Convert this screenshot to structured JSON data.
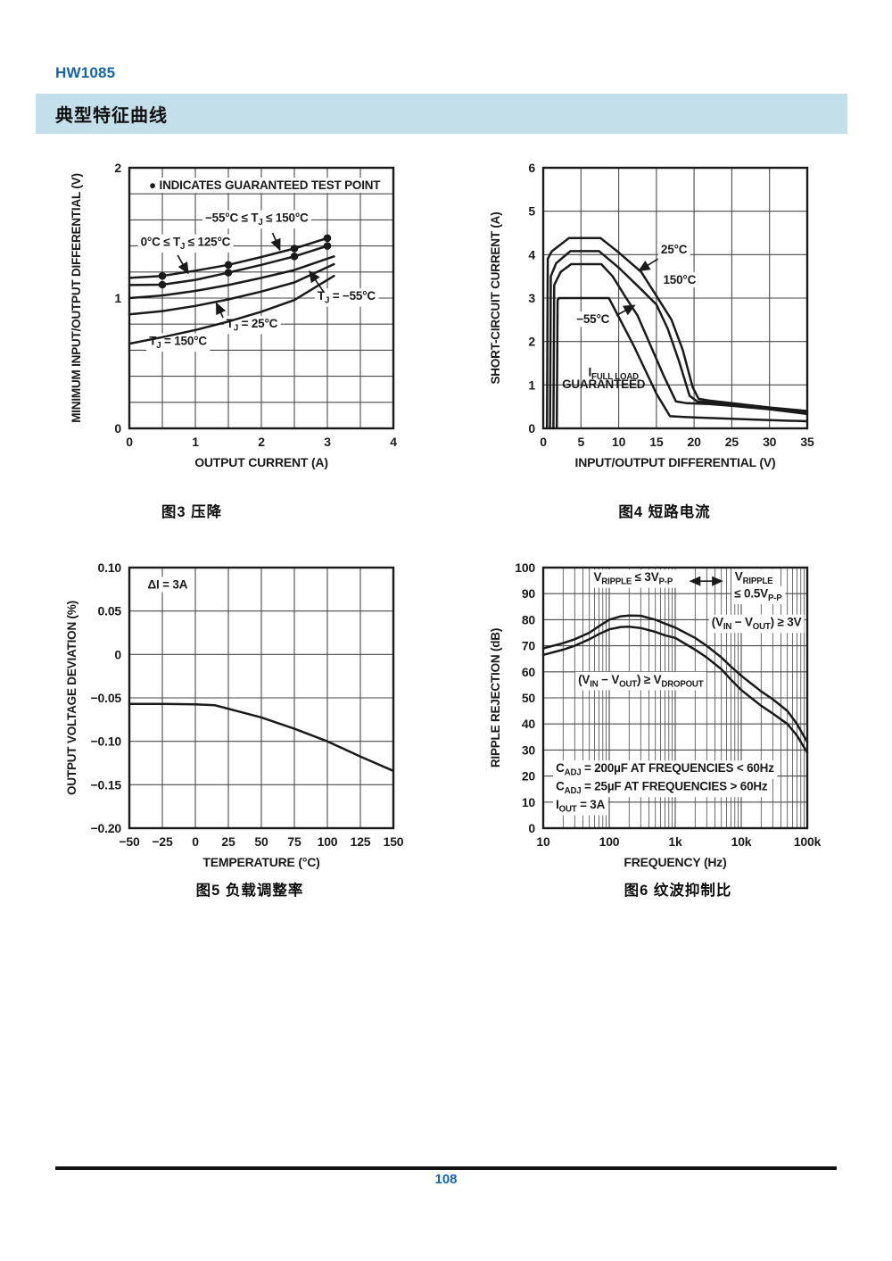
{
  "page": {
    "brand": "HW1085",
    "section_title": "典型特征曲线",
    "page_number": "108"
  },
  "colors": {
    "accent_blue": "#1565a8",
    "banner_bg": "#c3dfe9",
    "ink": "#1a1a1a",
    "grid": "#4a4a4a"
  },
  "chart_data": [
    {
      "id": "figure3",
      "type": "line",
      "caption": "图3 压降",
      "xlabel": "OUTPUT CURRENT (A)",
      "ylabel": "MINIMUM INPUT/OUTPUT DIFFERENTIAL (V)",
      "xlim": [
        0,
        4
      ],
      "ylim": [
        0,
        2
      ],
      "xgrid_step": 0.5,
      "ygrid_step": 0.2,
      "xticks": [
        0,
        1,
        2,
        3,
        4
      ],
      "xtick_labels": [
        "0",
        "1",
        "2",
        "3",
        "4"
      ],
      "yticks": [
        0,
        1,
        2
      ],
      "ytick_labels": [
        "0",
        "1",
        "2"
      ],
      "series": [
        {
          "name": "−55°C ≤ TJ ≤ 150°C",
          "points": [
            [
              0,
              1.155
            ],
            [
              0.5,
              1.17
            ],
            [
              1,
              1.21
            ],
            [
              1.5,
              1.255
            ],
            [
              2,
              1.315
            ],
            [
              2.5,
              1.38
            ],
            [
              3,
              1.46
            ]
          ],
          "test_points": [
            [
              0.5,
              1.17
            ],
            [
              1.5,
              1.255
            ],
            [
              2.5,
              1.38
            ],
            [
              3,
              1.46
            ]
          ]
        },
        {
          "name": "0°C ≤ TJ ≤ 125°C",
          "points": [
            [
              0,
              1.1
            ],
            [
              0.5,
              1.103
            ],
            [
              1,
              1.14
            ],
            [
              1.5,
              1.195
            ],
            [
              2,
              1.255
            ],
            [
              2.5,
              1.32
            ],
            [
              3,
              1.4
            ]
          ],
          "test_points": [
            [
              0.5,
              1.103
            ],
            [
              1.5,
              1.195
            ],
            [
              2.5,
              1.32
            ],
            [
              3,
              1.4
            ]
          ]
        },
        {
          "name": "TJ = −55°C",
          "points": [
            [
              0,
              1.0
            ],
            [
              0.5,
              1.02
            ],
            [
              1,
              1.055
            ],
            [
              1.5,
              1.1
            ],
            [
              2,
              1.155
            ],
            [
              2.5,
              1.215
            ],
            [
              3.1,
              1.32
            ]
          ]
        },
        {
          "name": "TJ = 25°C",
          "points": [
            [
              0,
              0.875
            ],
            [
              0.5,
              0.9
            ],
            [
              1,
              0.94
            ],
            [
              1.5,
              0.99
            ],
            [
              2,
              1.05
            ],
            [
              2.5,
              1.12
            ],
            [
              3.1,
              1.26
            ]
          ]
        },
        {
          "name": "TJ = 150°C",
          "points": [
            [
              0,
              0.65
            ],
            [
              0.5,
              0.7
            ],
            [
              1,
              0.755
            ],
            [
              1.5,
              0.82
            ],
            [
              2,
              0.895
            ],
            [
              2.5,
              0.985
            ],
            [
              3.1,
              1.17
            ]
          ]
        }
      ],
      "annotations": [
        {
          "text": "● INDICATES GUARANTEED TEST POINT",
          "x": 2.05,
          "y": 1.835,
          "anchor": "middle",
          "size": 13.5,
          "bg": true
        },
        {
          "text": "−55°C ≤ T~J~ ≤ 150°C",
          "x": 1.93,
          "y": 1.585,
          "anchor": "middle",
          "bg": true,
          "arrow": [
            2.17,
            1.5,
            2.28,
            1.37
          ]
        },
        {
          "text": "0°C ≤ T~J~ ≤ 125°C",
          "x": 0.85,
          "y": 1.4,
          "anchor": "middle",
          "bg": true,
          "arrow": [
            0.73,
            1.33,
            0.89,
            1.19
          ]
        },
        {
          "text": "T~J~ = −55°C",
          "x": 2.85,
          "y": 0.985,
          "anchor": "start",
          "bg": true,
          "arrow": [
            2.94,
            1.05,
            2.73,
            1.205
          ]
        },
        {
          "text": "T~J~ = 25°C",
          "x": 1.47,
          "y": 0.775,
          "anchor": "start",
          "bg": true,
          "arrow": [
            1.42,
            0.85,
            1.32,
            0.96
          ]
        },
        {
          "text": "T~J~ = 150°C",
          "x": 0.3,
          "y": 0.64,
          "anchor": "start",
          "bg": true
        }
      ]
    },
    {
      "id": "figure4",
      "type": "line",
      "caption": "图4 短路电流",
      "xlabel": "INPUT/OUTPUT DIFFERENTIAL (V)",
      "ylabel": "SHORT-CIRCUIT CURRENT (A)",
      "xlim": [
        0,
        35
      ],
      "ylim": [
        0,
        6
      ],
      "xgrid_step": 5,
      "ygrid_step": 1,
      "xticks": [
        0,
        5,
        10,
        15,
        20,
        25,
        30,
        35
      ],
      "xtick_labels": [
        "0",
        "5",
        "10",
        "15",
        "20",
        "25",
        "30",
        "35"
      ],
      "yticks": [
        0,
        1,
        2,
        3,
        4,
        5,
        6
      ],
      "ytick_labels": [
        "0",
        "1",
        "2",
        "3",
        "4",
        "5",
        "6"
      ],
      "series": [
        {
          "name": "25°C",
          "points": [
            [
              0.5,
              0
            ],
            [
              0.6,
              3.9
            ],
            [
              1.1,
              4.07
            ],
            [
              3.4,
              4.38
            ],
            [
              7.6,
              4.38
            ],
            [
              10,
              4.05
            ],
            [
              13,
              3.6
            ],
            [
              15,
              3.05
            ],
            [
              17,
              2.5
            ],
            [
              18.5,
              1.8
            ],
            [
              19.8,
              0.95
            ],
            [
              20.6,
              0.68
            ],
            [
              22,
              0.64
            ],
            [
              25,
              0.58
            ],
            [
              30,
              0.48
            ],
            [
              35,
              0.4
            ]
          ]
        },
        {
          "name": "150°C",
          "points": [
            [
              0.9,
              0
            ],
            [
              1.0,
              3.5
            ],
            [
              1.7,
              3.8
            ],
            [
              3.6,
              4.08
            ],
            [
              7.4,
              4.08
            ],
            [
              10,
              3.7
            ],
            [
              13,
              3.2
            ],
            [
              15,
              2.85
            ],
            [
              16.5,
              2.3
            ],
            [
              18,
              1.55
            ],
            [
              19.4,
              0.75
            ],
            [
              20.4,
              0.62
            ],
            [
              22,
              0.6
            ],
            [
              25,
              0.54
            ],
            [
              30,
              0.45
            ],
            [
              35,
              0.36
            ]
          ]
        },
        {
          "name": "−55°C",
          "points": [
            [
              1.35,
              0
            ],
            [
              1.45,
              3.3
            ],
            [
              2.3,
              3.6
            ],
            [
              3.7,
              3.78
            ],
            [
              7.7,
              3.78
            ],
            [
              9.2,
              3.5
            ],
            [
              11,
              3.0
            ],
            [
              12.5,
              2.6
            ],
            [
              14,
              2.0
            ],
            [
              16,
              1.2
            ],
            [
              17.6,
              0.62
            ],
            [
              19,
              0.58
            ],
            [
              22,
              0.56
            ],
            [
              25,
              0.52
            ],
            [
              30,
              0.44
            ],
            [
              35,
              0.33
            ]
          ]
        },
        {
          "name": "IFULL LOAD GUARANTEED",
          "points": [
            [
              1.8,
              0
            ],
            [
              1.9,
              2.95
            ],
            [
              2.1,
              3.0
            ],
            [
              8.7,
              3.0
            ],
            [
              12,
              1.9
            ],
            [
              15,
              0.8
            ],
            [
              16.8,
              0.28
            ],
            [
              20,
              0.25
            ],
            [
              25,
              0.22
            ],
            [
              30,
              0.19
            ],
            [
              35,
              0.165
            ]
          ]
        }
      ],
      "annotations": [
        {
          "text": "25°C",
          "x": 15.6,
          "y": 4.03,
          "anchor": "start",
          "bg": true,
          "arrow": [
            15.2,
            3.9,
            12.7,
            3.63
          ]
        },
        {
          "text": "150°C",
          "x": 15.9,
          "y": 3.33,
          "anchor": "start",
          "bg": true
        },
        {
          "text": "−55°C",
          "x": 4.4,
          "y": 2.42,
          "anchor": "start",
          "bg": true,
          "arrow": [
            9.7,
            2.6,
            12.1,
            2.83
          ]
        },
        {
          "text": "I~FULL LOAD~",
          "x": 9.3,
          "y": 1.2,
          "anchor": "middle",
          "bg": false
        },
        {
          "text": "GUARANTEED",
          "x": 8.0,
          "y": 0.92,
          "anchor": "middle",
          "bg": false
        }
      ]
    },
    {
      "id": "figure5",
      "type": "line",
      "caption": "图5 负载调整率",
      "xlabel": "TEMPERATURE (°C)",
      "ylabel": "OUTPUT VOLTAGE DEVIATION (%)",
      "xlim": [
        -50,
        150
      ],
      "ylim": [
        -0.2,
        0.1
      ],
      "xgrid_step": 25,
      "ygrid_step": 0.05,
      "xticks": [
        -50,
        -25,
        0,
        25,
        50,
        75,
        100,
        125,
        150
      ],
      "xtick_labels": [
        "−50",
        "−25",
        "0",
        "25",
        "50",
        "75",
        "100",
        "125",
        "150"
      ],
      "yticks": [
        0.1,
        0.05,
        0,
        -0.05,
        -0.1,
        -0.15,
        -0.2
      ],
      "ytick_labels": [
        "0.10",
        "0.05",
        "0",
        "−0.05",
        "−0.10",
        "−0.15",
        "−0.20"
      ],
      "series": [
        {
          "name": "ΔI = 3A",
          "points": [
            [
              -50,
              -0.057
            ],
            [
              -25,
              -0.057
            ],
            [
              0,
              -0.0575
            ],
            [
              15,
              -0.0585
            ],
            [
              25,
              -0.0625
            ],
            [
              50,
              -0.0725
            ],
            [
              75,
              -0.0855
            ],
            [
              100,
              -0.1
            ],
            [
              125,
              -0.1175
            ],
            [
              150,
              -0.134
            ]
          ]
        }
      ],
      "annotations": [
        {
          "text": "ΔI = 3A",
          "x": -21,
          "y": 0.076,
          "anchor": "middle",
          "bg": true
        }
      ]
    },
    {
      "id": "figure6",
      "type": "line",
      "xscale": "log",
      "caption": "图6 纹波抑制比",
      "xlabel": "FREQUENCY (Hz)",
      "ylabel": "RIPPLE REJECTION (dB)",
      "xlim": [
        10,
        100000
      ],
      "ylim": [
        0,
        100
      ],
      "ygrid_step": 10,
      "xticks": [
        10,
        100,
        1000,
        10000,
        100000
      ],
      "xtick_labels": [
        "10",
        "100",
        "1k",
        "10k",
        "100k"
      ],
      "yticks": [
        0,
        10,
        20,
        30,
        40,
        50,
        60,
        70,
        80,
        90,
        100
      ],
      "ytick_labels": [
        "0",
        "10",
        "20",
        "30",
        "40",
        "50",
        "60",
        "70",
        "80",
        "90",
        "100"
      ],
      "series": [
        {
          "name": "(VIN − VOUT) ≥ 3V",
          "points": [
            [
              10,
              69
            ],
            [
              20,
              71
            ],
            [
              30,
              72.5
            ],
            [
              50,
              75
            ],
            [
              70,
              77.5
            ],
            [
              100,
              80
            ],
            [
              150,
              81.3
            ],
            [
              200,
              81.6
            ],
            [
              300,
              81.5
            ],
            [
              500,
              80
            ],
            [
              700,
              78.5
            ],
            [
              1000,
              77
            ],
            [
              2000,
              73
            ],
            [
              3000,
              70
            ],
            [
              5000,
              65.5
            ],
            [
              7000,
              62
            ],
            [
              10000,
              58.5
            ],
            [
              15000,
              55
            ],
            [
              20000,
              52.5
            ],
            [
              30000,
              49.5
            ],
            [
              50000,
              45
            ],
            [
              70000,
              40
            ],
            [
              100000,
              33
            ]
          ]
        },
        {
          "name": "(VIN − VOUT) ≥ VDROPOUT",
          "points": [
            [
              10,
              66.5
            ],
            [
              20,
              68.5
            ],
            [
              30,
              70
            ],
            [
              50,
              72.5
            ],
            [
              70,
              74.5
            ],
            [
              100,
              76.3
            ],
            [
              150,
              77.2
            ],
            [
              200,
              77.3
            ],
            [
              300,
              76.8
            ],
            [
              500,
              75.3
            ],
            [
              700,
              74
            ],
            [
              1000,
              73
            ],
            [
              2000,
              68.5
            ],
            [
              3000,
              65.5
            ],
            [
              5000,
              61
            ],
            [
              7000,
              57
            ],
            [
              10000,
              53
            ],
            [
              15000,
              49.5
            ],
            [
              20000,
              47
            ],
            [
              30000,
              44
            ],
            [
              50000,
              40
            ],
            [
              70000,
              35.5
            ],
            [
              100000,
              29
            ]
          ]
        }
      ],
      "annotations": [
        {
          "text": "V~RIPPLE~ ≤ 3V~P-P~",
          "x": 230,
          "y": 94.8,
          "anchor": "middle",
          "bg": true
        },
        {
          "double_arrow": [
            1700,
            94.8,
            5100,
            94.8
          ]
        },
        {
          "text": "V~RIPPLE~",
          "x": 15500,
          "y": 95,
          "anchor": "middle",
          "bg": true
        },
        {
          "text": "≤ 0.5V~P-P~",
          "x": 18000,
          "y": 88.5,
          "anchor": "middle",
          "bg": true
        },
        {
          "text": "(V~IN~ − V~OUT~) ≥ 3V",
          "x": 17000,
          "y": 77.5,
          "anchor": "middle",
          "bg": true
        },
        {
          "text": "(V~IN~ − V~OUT~) ≥ V~DROPOUT~",
          "x": 300,
          "y": 55.5,
          "anchor": "middle",
          "bg": true
        },
        {
          "text": "C~ADJ~ = 200µF AT FREQUENCIES < 60Hz",
          "x": 15.5,
          "y": 21.5,
          "anchor": "start",
          "bg": true
        },
        {
          "text": "C~ADJ~ = 25µF AT FREQUENCIES > 60Hz",
          "x": 15.5,
          "y": 14.5,
          "anchor": "start",
          "bg": true
        },
        {
          "text": "I~OUT~ = 3A",
          "x": 15.5,
          "y": 7.5,
          "anchor": "start",
          "bg": true
        }
      ]
    }
  ]
}
